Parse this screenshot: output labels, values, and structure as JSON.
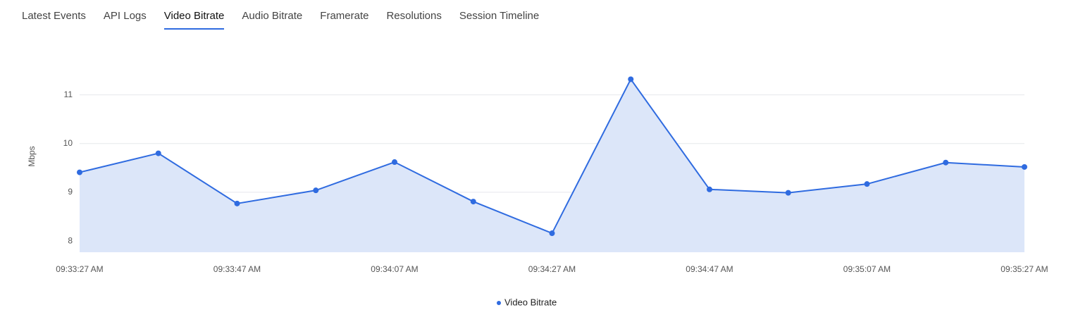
{
  "tabs": [
    "Latest Events",
    "API Logs",
    "Video Bitrate",
    "Audio Bitrate",
    "Framerate",
    "Resolutions",
    "Session Timeline"
  ],
  "active_tab": 2,
  "chart_data": {
    "type": "line",
    "y_label": "Mbps",
    "categories": [
      "09:33:27 AM",
      null,
      "09:33:47 AM",
      null,
      "09:34:07 AM",
      null,
      "09:34:27 AM",
      null,
      "09:34:47 AM",
      null,
      "09:35:07 AM",
      null,
      "09:35:27 AM"
    ],
    "series": [
      {
        "name": "Video Bitrate",
        "color": "#2f6be0",
        "fill": "#dce6f9",
        "values": [
          9.41,
          9.8,
          8.77,
          9.04,
          9.62,
          8.81,
          8.16,
          11.32,
          9.06,
          8.99,
          9.17,
          9.61,
          9.52
        ]
      }
    ],
    "ylim": [
      7.77,
      11.5
    ],
    "yticks": [
      8,
      9,
      10,
      11
    ],
    "grid": true
  }
}
